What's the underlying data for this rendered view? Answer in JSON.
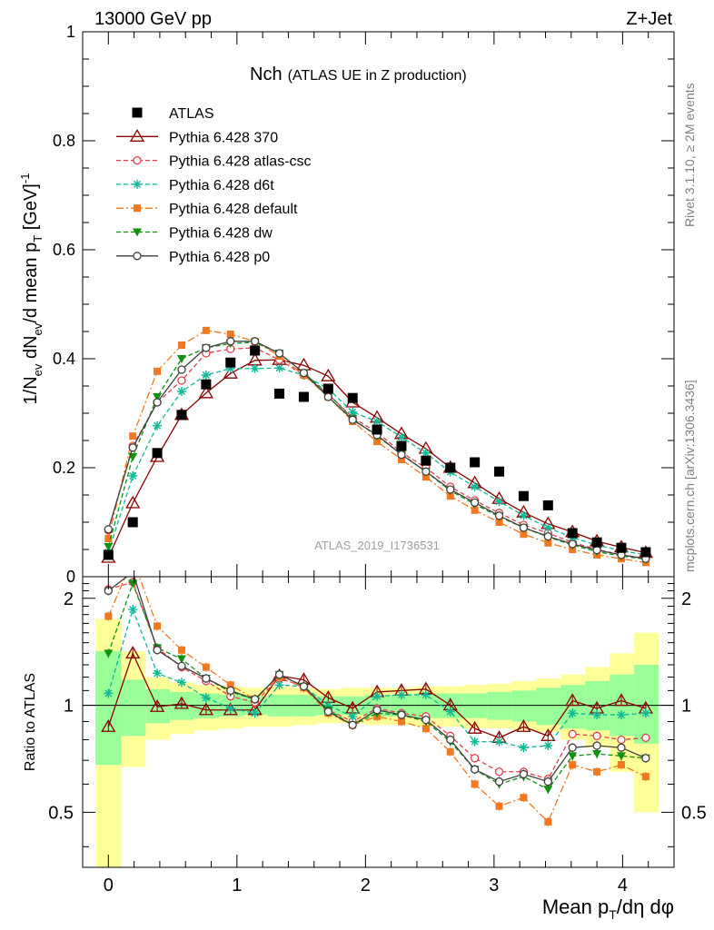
{
  "header": {
    "energy_label": "13000 GeV pp",
    "process_label": "Z+Jet",
    "side_label_rivet": "Rivet 3.1.10, ≥ 2M events",
    "side_label_mcplots": "mcplots.cern.ch [arXiv:1306.3436]",
    "analysis_id": "ATLAS_2019_I1736531"
  },
  "chart_data": [
    {
      "panel": "main",
      "type": "scatter",
      "title": "Nch",
      "subtitle": "(ATLAS UE in Z production)",
      "xlabel": "Mean pT/dη dφ",
      "ylabel": "1/Nev dNev/d mean pT [GeV]^-1",
      "xlim": [
        -0.2,
        4.4
      ],
      "ylim": [
        0,
        1.0
      ],
      "y_ticks": [
        "0",
        "0.2",
        "0.4",
        "0.6",
        "0.8",
        "1"
      ],
      "x": [
        0.0,
        0.19,
        0.38,
        0.57,
        0.76,
        0.95,
        1.14,
        1.33,
        1.52,
        1.71,
        1.9,
        2.09,
        2.28,
        2.47,
        2.66,
        2.85,
        3.04,
        3.23,
        3.42,
        3.61,
        3.8,
        3.99,
        4.18
      ],
      "legend_position": "upper-left",
      "series": [
        {
          "name": "ATLAS",
          "color": "#000000",
          "marker": "filled-square",
          "line": "none",
          "values": [
            0.04,
            0.1,
            0.227,
            0.297,
            0.353,
            0.393,
            0.415,
            0.336,
            0.33,
            0.345,
            0.328,
            0.27,
            0.24,
            0.213,
            0.2,
            0.21,
            0.193,
            0.148,
            0.131,
            0.08,
            0.063,
            0.053,
            0.045
          ]
        },
        {
          "name": "Pythia 6.428 370",
          "color": "#8b0000",
          "marker": "open-triangle",
          "line": "solid",
          "values": [
            0.035,
            0.135,
            0.22,
            0.297,
            0.337,
            0.373,
            0.397,
            0.398,
            0.388,
            0.368,
            0.32,
            0.292,
            0.262,
            0.235,
            0.2,
            0.172,
            0.143,
            0.118,
            0.097,
            0.082,
            0.065,
            0.054,
            0.044
          ]
        },
        {
          "name": "Pythia 6.428 atlas-csc",
          "color": "#e0404c",
          "marker": "open-circle",
          "line": "dashed",
          "values": [
            0.085,
            0.24,
            0.32,
            0.36,
            0.41,
            0.418,
            0.42,
            0.398,
            0.37,
            0.335,
            0.292,
            0.265,
            0.228,
            0.2,
            0.165,
            0.14,
            0.117,
            0.095,
            0.08,
            0.063,
            0.05,
            0.04,
            0.034
          ]
        },
        {
          "name": "Pythia 6.428 d6t",
          "color": "#10b898",
          "marker": "star",
          "line": "dashed",
          "values": [
            0.045,
            0.185,
            0.277,
            0.34,
            0.37,
            0.382,
            0.382,
            0.383,
            0.37,
            0.345,
            0.302,
            0.285,
            0.256,
            0.227,
            0.192,
            0.165,
            0.138,
            0.112,
            0.09,
            0.072,
            0.058,
            0.048,
            0.04
          ]
        },
        {
          "name": "Pythia 6.428 default",
          "color": "#f07820",
          "marker": "filled-square-small",
          "line": "dashdot",
          "values": [
            0.07,
            0.258,
            0.377,
            0.425,
            0.452,
            0.445,
            0.432,
            0.405,
            0.37,
            0.33,
            0.285,
            0.248,
            0.215,
            0.183,
            0.148,
            0.122,
            0.1,
            0.078,
            0.062,
            0.05,
            0.04,
            0.033,
            0.026
          ]
        },
        {
          "name": "Pythia 6.428 dw",
          "color": "#109010",
          "marker": "filled-triangle-down",
          "line": "dashed",
          "values": [
            0.055,
            0.22,
            0.33,
            0.4,
            0.42,
            0.428,
            0.43,
            0.41,
            0.374,
            0.336,
            0.29,
            0.258,
            0.225,
            0.193,
            0.158,
            0.133,
            0.11,
            0.09,
            0.073,
            0.058,
            0.046,
            0.038,
            0.032
          ]
        },
        {
          "name": "Pythia 6.428 p0",
          "color": "#404040",
          "marker": "open-circle",
          "line": "solid",
          "values": [
            0.087,
            0.237,
            0.32,
            0.38,
            0.42,
            0.432,
            0.432,
            0.41,
            0.374,
            0.33,
            0.288,
            0.26,
            0.224,
            0.193,
            0.16,
            0.136,
            0.112,
            0.09,
            0.074,
            0.06,
            0.049,
            0.04,
            0.033
          ]
        }
      ]
    },
    {
      "panel": "ratio",
      "type": "line",
      "ylabel": "Ratio to ATLAS",
      "xlabel": "Mean pT/dη dφ",
      "xlim": [
        -0.2,
        4.4
      ],
      "ylim": [
        0.35,
        2.3
      ],
      "y_ticks": [
        "0.5",
        "1",
        "2"
      ],
      "x_ticks": [
        "0",
        "1",
        "2",
        "3",
        "4"
      ],
      "reference_line": 1,
      "x": [
        0.0,
        0.19,
        0.38,
        0.57,
        0.76,
        0.95,
        1.14,
        1.33,
        1.52,
        1.71,
        1.9,
        2.09,
        2.28,
        2.47,
        2.66,
        2.85,
        3.04,
        3.23,
        3.42,
        3.61,
        3.8,
        3.99,
        4.18
      ],
      "band_edges": [
        -0.1,
        0.1,
        0.29,
        0.48,
        0.67,
        0.86,
        1.05,
        1.24,
        1.43,
        1.62,
        1.81,
        2.0,
        2.19,
        2.38,
        2.57,
        2.76,
        2.95,
        3.14,
        3.33,
        3.52,
        3.71,
        3.9,
        4.09,
        4.28
      ],
      "stat_band_lo": [
        0.68,
        0.82,
        0.89,
        0.91,
        0.92,
        0.93,
        0.94,
        0.93,
        0.93,
        0.94,
        0.94,
        0.93,
        0.93,
        0.92,
        0.92,
        0.92,
        0.91,
        0.9,
        0.88,
        0.86,
        0.85,
        0.82,
        0.78
      ],
      "stat_band_hi": [
        1.42,
        1.18,
        1.11,
        1.09,
        1.08,
        1.07,
        1.06,
        1.07,
        1.07,
        1.06,
        1.06,
        1.07,
        1.07,
        1.08,
        1.08,
        1.08,
        1.09,
        1.1,
        1.12,
        1.14,
        1.17,
        1.22,
        1.3
      ],
      "total_band_lo": [
        0.3,
        0.67,
        0.8,
        0.83,
        0.85,
        0.86,
        0.87,
        0.87,
        0.88,
        0.89,
        0.89,
        0.88,
        0.88,
        0.87,
        0.87,
        0.86,
        0.86,
        0.85,
        0.84,
        0.8,
        0.76,
        0.65,
        0.5
      ],
      "total_band_hi": [
        1.75,
        1.42,
        1.2,
        1.16,
        1.14,
        1.13,
        1.12,
        1.13,
        1.12,
        1.11,
        1.12,
        1.12,
        1.12,
        1.13,
        1.13,
        1.14,
        1.15,
        1.17,
        1.19,
        1.22,
        1.28,
        1.4,
        1.6
      ],
      "series": [
        {
          "name": "Pythia 6.428 370",
          "color": "#8b0000",
          "values": [
            0.87,
            1.4,
            0.99,
            1.01,
            0.97,
            0.97,
            0.97,
            1.21,
            1.18,
            1.05,
            0.98,
            1.09,
            1.1,
            1.11,
            1.0,
            0.86,
            0.81,
            0.87,
            0.82,
            1.03,
            0.98,
            1.03,
            0.98
          ]
        },
        {
          "name": "Pythia 6.428 atlas-csc",
          "color": "#e0404c",
          "values": [
            2.12,
            2.22,
            1.45,
            1.28,
            1.17,
            1.06,
            1.02,
            1.19,
            1.13,
            0.97,
            0.9,
            0.98,
            0.95,
            0.93,
            0.82,
            0.71,
            0.65,
            0.65,
            0.62,
            0.83,
            0.82,
            0.8,
            0.81
          ]
        },
        {
          "name": "Pythia 6.428 d6t",
          "color": "#10b898",
          "values": [
            1.08,
            1.86,
            1.23,
            1.16,
            1.05,
            0.98,
            0.95,
            1.14,
            1.13,
            1.0,
            0.93,
            1.06,
            1.07,
            1.07,
            0.96,
            0.79,
            0.79,
            0.76,
            0.77,
            0.95,
            0.94,
            0.94,
            0.95
          ]
        },
        {
          "name": "Pythia 6.428 default",
          "color": "#f07820",
          "values": [
            1.78,
            2.58,
            1.67,
            1.43,
            1.28,
            1.14,
            1.04,
            1.2,
            1.12,
            0.95,
            0.88,
            0.93,
            0.9,
            0.86,
            0.74,
            0.6,
            0.52,
            0.55,
            0.47,
            0.68,
            0.65,
            0.68,
            0.63
          ]
        },
        {
          "name": "Pythia 6.428 dw",
          "color": "#109010",
          "values": [
            1.4,
            2.2,
            1.45,
            1.35,
            1.19,
            1.09,
            1.04,
            1.22,
            1.13,
            0.97,
            0.88,
            0.95,
            0.94,
            0.9,
            0.79,
            0.66,
            0.6,
            0.63,
            0.58,
            0.72,
            0.73,
            0.72,
            0.71
          ]
        },
        {
          "name": "Pythia 6.428 p0",
          "color": "#404040",
          "values": [
            2.1,
            2.37,
            1.43,
            1.29,
            1.19,
            1.1,
            1.04,
            1.22,
            1.13,
            0.96,
            0.88,
            0.97,
            0.94,
            0.91,
            0.8,
            0.66,
            0.61,
            0.64,
            0.61,
            0.76,
            0.77,
            0.76,
            0.71
          ]
        }
      ]
    }
  ]
}
